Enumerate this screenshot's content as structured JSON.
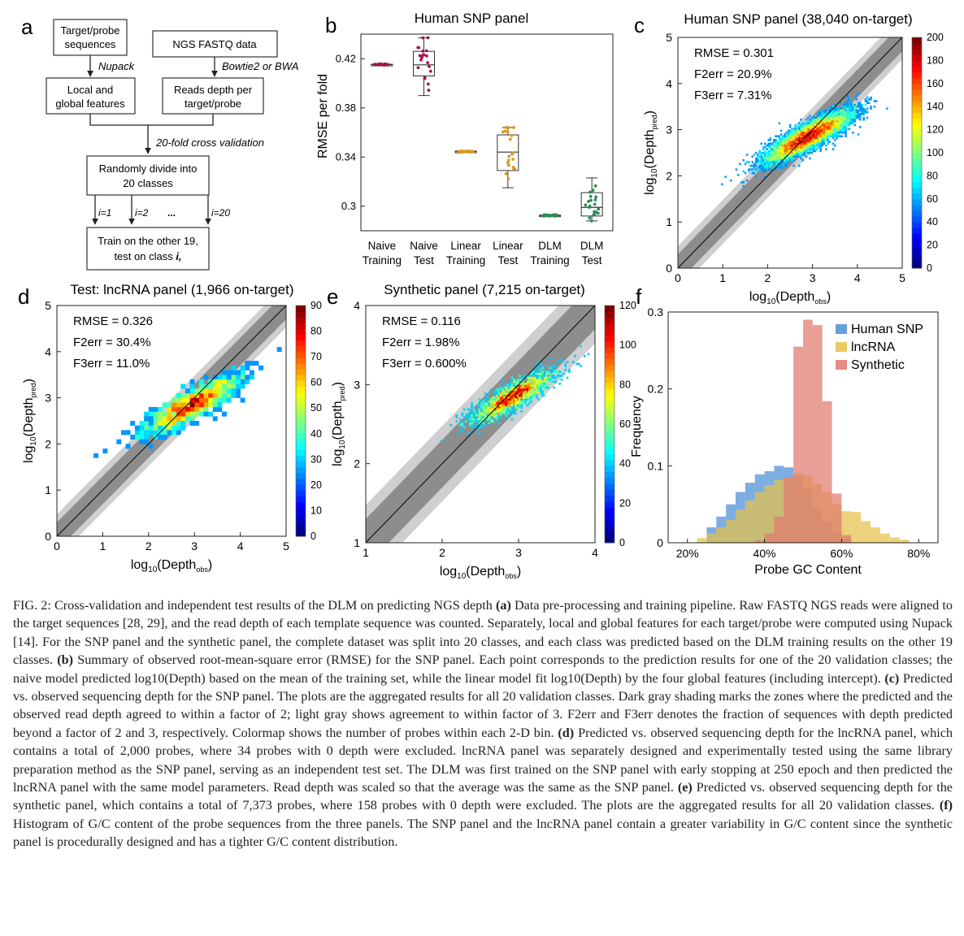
{
  "panel_letters": {
    "a": "a",
    "b": "b",
    "c": "c",
    "d": "d",
    "e": "e",
    "f": "f"
  },
  "flowchart": {
    "box_target": [
      "Target/probe",
      "sequences"
    ],
    "box_fastq": "NGS FASTQ data",
    "label_nupack": "Nupack",
    "label_bowtie": "Bowtie2 or BWA",
    "box_features": [
      "Local and",
      "global features"
    ],
    "box_reads": [
      "Reads depth per",
      "target/probe"
    ],
    "label_cv": "20-fold cross validation",
    "box_divide": [
      "Randomly divide into",
      "20 classes"
    ],
    "i_labels": [
      "i=1",
      "i=2",
      "...",
      "i=20"
    ],
    "box_train": [
      "Train on the other 19,",
      "test on class "
    ],
    "box_train_i": "i,"
  },
  "colorbars": {
    "c": {
      "ticks": [
        "0",
        "20",
        "40",
        "60",
        "80",
        "100",
        "120",
        "140",
        "160",
        "180",
        "200"
      ]
    },
    "d": {
      "ticks": [
        "0",
        "10",
        "20",
        "30",
        "40",
        "50",
        "60",
        "70",
        "80",
        "90"
      ]
    },
    "e": {
      "ticks": [
        "0",
        "20",
        "40",
        "60",
        "80",
        "100",
        "120"
      ]
    }
  },
  "chart_data": [
    {
      "id": "b",
      "type": "box",
      "title": "Human SNP panel",
      "ylabel": "RMSE per fold",
      "ylim": [
        0.28,
        0.44
      ],
      "yticks": [
        "0.3",
        "0.34",
        "0.38",
        "0.42"
      ],
      "categories": [
        [
          "Naive",
          "Training"
        ],
        [
          "Naive",
          "Test"
        ],
        [
          "Linear",
          "Training"
        ],
        [
          "Linear",
          "Test"
        ],
        [
          "DLM",
          "Training"
        ],
        [
          "DLM",
          "Test"
        ]
      ],
      "colors": [
        "#a0174a",
        "#a0174a",
        "#d99a1e",
        "#d99a1e",
        "#2e8b57",
        "#2e8b57"
      ],
      "boxes": [
        {
          "min": 0.4145,
          "q1": 0.415,
          "median": 0.4152,
          "q3": 0.4155,
          "max": 0.416
        },
        {
          "min": 0.39,
          "q1": 0.406,
          "median": 0.415,
          "q3": 0.426,
          "max": 0.437
        },
        {
          "min": 0.3437,
          "q1": 0.3442,
          "median": 0.3445,
          "q3": 0.3448,
          "max": 0.3453
        },
        {
          "min": 0.315,
          "q1": 0.329,
          "median": 0.344,
          "q3": 0.358,
          "max": 0.364
        },
        {
          "min": 0.2918,
          "q1": 0.2922,
          "median": 0.2925,
          "q3": 0.2928,
          "max": 0.2932
        },
        {
          "min": 0.288,
          "q1": 0.292,
          "median": 0.299,
          "q3": 0.311,
          "max": 0.323
        }
      ]
    },
    {
      "id": "c",
      "type": "heatmap",
      "title": "Human SNP panel (38,040 on-target)",
      "xlabel": "log10(Depth_obs)",
      "ylabel": "log10(Depth_pred)",
      "xlim": [
        0,
        5
      ],
      "ylim": [
        0,
        5
      ],
      "xticks": [
        "0",
        "1",
        "2",
        "3",
        "4",
        "5"
      ],
      "yticks": [
        "0",
        "1",
        "2",
        "3",
        "4",
        "5"
      ],
      "stats": [
        "RMSE = 0.301",
        "F2err = 20.9%",
        "F3err = 7.31%"
      ],
      "center": [
        2.9,
        2.85
      ],
      "spread": [
        0.45,
        0.3
      ],
      "colorbar_max": 200
    },
    {
      "id": "d",
      "type": "heatmap",
      "title": "Test: lncRNA panel (1,966 on-target)",
      "xlabel": "log10(Depth_obs)",
      "ylabel": "log10(Depth_pred)",
      "xlim": [
        0,
        5
      ],
      "ylim": [
        0,
        5
      ],
      "xticks": [
        "0",
        "1",
        "2",
        "3",
        "4",
        "5"
      ],
      "yticks": [
        "0",
        "1",
        "2",
        "3",
        "4",
        "5"
      ],
      "stats": [
        "RMSE = 0.326",
        "F2err = 30.4%",
        "F3err = 11.0%"
      ],
      "center": [
        2.95,
        2.85
      ],
      "spread": [
        0.5,
        0.35
      ],
      "colorbar_max": 90
    },
    {
      "id": "e",
      "type": "heatmap",
      "title": "Synthetic panel (7,215 on-target)",
      "xlabel": "log10(Depth_obs)",
      "ylabel": "log10(Depth_pred)",
      "xlim": [
        1,
        4
      ],
      "ylim": [
        1,
        4
      ],
      "xticks": [
        "1",
        "2",
        "3",
        "4"
      ],
      "yticks": [
        "1",
        "2",
        "3",
        "4"
      ],
      "stats": [
        "RMSE = 0.116",
        "F2err = 1.98%",
        "F3err = 0.600%"
      ],
      "center": [
        2.92,
        2.85
      ],
      "spread": [
        0.25,
        0.18
      ],
      "colorbar_max": 120
    },
    {
      "id": "f",
      "type": "histogram",
      "xlabel": "Probe GC Content",
      "ylabel": "Frequency",
      "xlim": [
        15,
        85
      ],
      "ylim": [
        0,
        0.3
      ],
      "xticks": [
        "20%",
        "40%",
        "60%",
        "80%"
      ],
      "yticks": [
        "0",
        "0.1",
        "0.2",
        "0.3"
      ],
      "bin_width": 2.5,
      "series": [
        {
          "name": "Human SNP",
          "color": "#4a8fd6",
          "start": 25,
          "values": [
            0.02,
            0.034,
            0.05,
            0.066,
            0.078,
            0.089,
            0.093,
            0.1,
            0.098,
            0.086,
            0.07,
            0.044,
            0.028,
            0.014,
            0.006
          ]
        },
        {
          "name": "lncRNA",
          "color": "#e6c04a",
          "start": 22.5,
          "values": [
            0.006,
            0.012,
            0.02,
            0.03,
            0.043,
            0.055,
            0.066,
            0.075,
            0.082,
            0.085,
            0.09,
            0.088,
            0.077,
            0.066,
            0.05,
            0.041,
            0.04,
            0.028,
            0.02,
            0.012,
            0.007,
            0.004
          ]
        },
        {
          "name": "Synthetic",
          "color": "#e07a6e",
          "start": 37.5,
          "values": [
            0.003,
            0.012,
            0.034,
            0.085,
            0.255,
            0.29,
            0.283,
            0.184,
            0.064,
            0.01
          ]
        }
      ]
    }
  ],
  "caption": [
    {
      "b": "",
      "t": "FIG. 2:  Cross-validation and independent test results of the DLM on predicting NGS depth "
    },
    {
      "b": "(a)",
      "t": " Data pre-processing and training pipeline. Raw FASTQ NGS reads were aligned to the target sequences [28, 29], and the read depth of each template sequence was counted. Separately, local and global features for each target/probe were computed using Nupack [14]. For the SNP panel and the synthetic panel, the complete dataset was split into 20 classes, and each class was predicted based on the DLM training results on the other 19 classes. "
    },
    {
      "b": "(b)",
      "t": " Summary of observed root-mean-square error (RMSE) for the SNP panel. Each point corresponds to the prediction results for one of the 20 validation classes; the naive model predicted log10(Depth) based on the mean of the training set, while the linear model fit log10(Depth) by the four global features (including intercept). "
    },
    {
      "b": "(c)",
      "t": " Predicted vs. observed sequencing depth for the SNP panel. The plots are the aggregated results for all 20 validation classes. Dark gray shading marks the zones where the predicted and the observed read depth agreed to within a factor of 2; light gray shows agreement to within factor of 3. F2err and F3err denotes the fraction of sequences with depth predicted beyond a factor of 2 and 3, respectively. Colormap shows the number of probes within each 2-D bin. "
    },
    {
      "b": "(d)",
      "t": " Predicted vs. observed sequencing depth for the lncRNA panel, which contains a total of 2,000 probes, where 34 probes with 0 depth were excluded. lncRNA panel was separately designed and experimentally tested using the same library preparation method as the SNP panel, serving as an independent test set. The DLM was first trained on the SNP panel with early stopping at 250 epoch and then predicted the lncRNA panel with the same model parameters. Read depth was scaled so that the average was the same as the SNP panel. "
    },
    {
      "b": "(e)",
      "t": " Predicted vs. observed sequencing depth for the synthetic panel, which contains a total of 7,373 probes, where 158 probes with 0 depth were excluded. The plots are the aggregated results for all 20 validation classes. "
    },
    {
      "b": "(f)",
      "t": " Histogram of G/C content of the probe sequences from the three panels. The SNP panel and the lncRNA panel contain a greater variability in G/C content since the synthetic panel is procedurally designed and has a tighter G/C content distribution."
    }
  ]
}
